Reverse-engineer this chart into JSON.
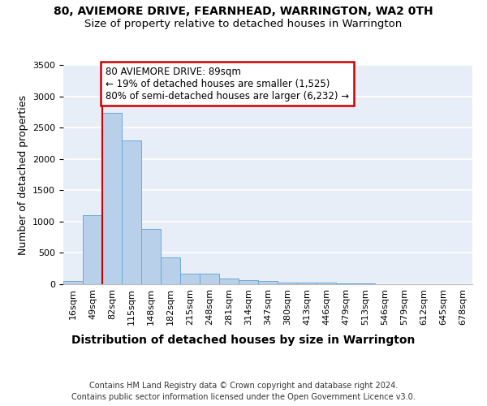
{
  "title1": "80, AVIEMORE DRIVE, FEARNHEAD, WARRINGTON, WA2 0TH",
  "title2": "Size of property relative to detached houses in Warrington",
  "xlabel": "Distribution of detached houses by size in Warrington",
  "ylabel": "Number of detached properties",
  "categories": [
    "16sqm",
    "49sqm",
    "82sqm",
    "115sqm",
    "148sqm",
    "182sqm",
    "215sqm",
    "248sqm",
    "281sqm",
    "314sqm",
    "347sqm",
    "380sqm",
    "413sqm",
    "446sqm",
    "479sqm",
    "513sqm",
    "546sqm",
    "579sqm",
    "612sqm",
    "645sqm",
    "678sqm"
  ],
  "values": [
    50,
    1100,
    2730,
    2290,
    880,
    430,
    170,
    165,
    95,
    60,
    50,
    30,
    30,
    25,
    10,
    10,
    5,
    5,
    5,
    5,
    5
  ],
  "bar_color": "#b8d0ea",
  "bar_edge_color": "#6aaad4",
  "bg_color": "#e8eef8",
  "grid_color": "#ffffff",
  "vline_color": "#cc0000",
  "annotation_text": "80 AVIEMORE DRIVE: 89sqm\n← 19% of detached houses are smaller (1,525)\n80% of semi-detached houses are larger (6,232) →",
  "annotation_box_color": "#ffffff",
  "annotation_box_edge": "#cc0000",
  "footer": "Contains HM Land Registry data © Crown copyright and database right 2024.\nContains public sector information licensed under the Open Government Licence v3.0.",
  "ylim": [
    0,
    3500
  ],
  "title1_fontsize": 10,
  "title2_fontsize": 9.5,
  "xlabel_fontsize": 10,
  "ylabel_fontsize": 9,
  "tick_fontsize": 8,
  "footer_fontsize": 7,
  "annot_fontsize": 8.5
}
